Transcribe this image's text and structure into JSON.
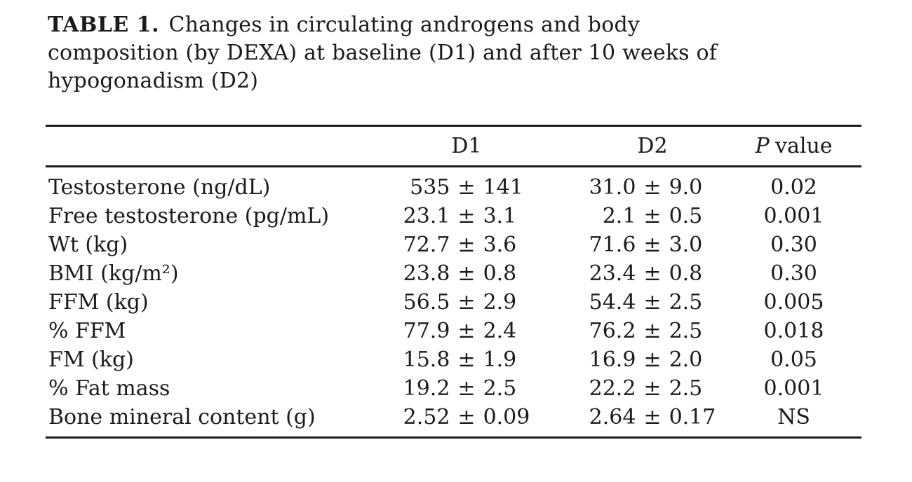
{
  "page": {
    "background": "#ffffff",
    "text_color": "#1b1b1b",
    "rule_color": "#1c1c1c"
  },
  "title": {
    "label": "TABLE 1.",
    "line1_rest": "Changes in circulating androgens and body",
    "line2": "composition (by DEXA) at baseline (D1) and after 10 weeks of",
    "line3": "hypogonadism (D2)"
  },
  "table": {
    "pm": "±",
    "columns": {
      "parameter": "",
      "d1": "D1",
      "d2": "D2",
      "p_symbol": "P",
      "p_word": "value"
    },
    "rows": [
      {
        "label": "Testosterone (ng/dL)",
        "d1": [
          "535",
          "141"
        ],
        "d2": [
          "31.0",
          "9.0"
        ],
        "p": "0.02"
      },
      {
        "label": "Free testosterone (pg/mL)",
        "d1": [
          "23.1",
          "3.1"
        ],
        "d2": [
          "2.1",
          "0.5"
        ],
        "p": "0.001"
      },
      {
        "label": "Wt (kg)",
        "d1": [
          "72.7",
          "3.6"
        ],
        "d2": [
          "71.6",
          "3.0"
        ],
        "p": "0.30"
      },
      {
        "label": "BMI (kg/m²)",
        "d1": [
          "23.8",
          "0.8"
        ],
        "d2": [
          "23.4",
          "0.8"
        ],
        "p": "0.30"
      },
      {
        "label": "FFM (kg)",
        "d1": [
          "56.5",
          "2.9"
        ],
        "d2": [
          "54.4",
          "2.5"
        ],
        "p": "0.005"
      },
      {
        "label": "% FFM",
        "d1": [
          "77.9",
          "2.4"
        ],
        "d2": [
          "76.2",
          "2.5"
        ],
        "p": "0.018"
      },
      {
        "label": "FM (kg)",
        "d1": [
          "15.8",
          "1.9"
        ],
        "d2": [
          "16.9",
          "2.0"
        ],
        "p": "0.05"
      },
      {
        "label": "% Fat mass",
        "d1": [
          "19.2",
          "2.5"
        ],
        "d2": [
          "22.2",
          "2.5"
        ],
        "p": "0.001"
      },
      {
        "label": "Bone mineral content (g)",
        "d1": [
          "2.52",
          "0.09"
        ],
        "d2": [
          "2.64",
          "0.17"
        ],
        "p": "NS"
      }
    ]
  }
}
